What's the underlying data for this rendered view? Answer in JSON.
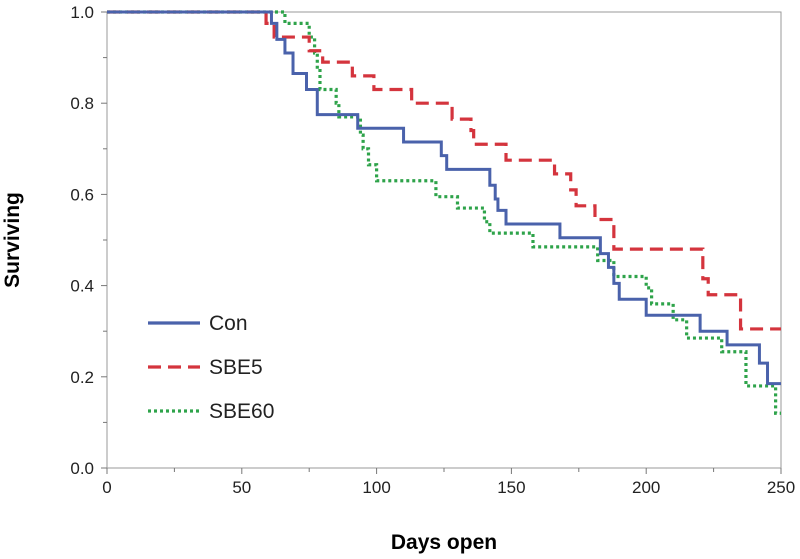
{
  "chart_data": {
    "type": "line",
    "step": true,
    "title": "",
    "xlabel": "Days open",
    "ylabel": "Surviving",
    "xlim": [
      0,
      250
    ],
    "ylim": [
      0,
      1
    ],
    "xticks": [
      0,
      50,
      100,
      150,
      200,
      250
    ],
    "xtick_labels": [
      "0",
      "50",
      "100",
      "150",
      "200",
      "250"
    ],
    "yticks": [
      0,
      0.2,
      0.4,
      0.6,
      0.8,
      1.0
    ],
    "ytick_labels": [
      "0.0",
      "0.2",
      "0.4",
      "0.6",
      "0.8",
      "1.0"
    ],
    "grid": false,
    "legend": "lower-left",
    "series": [
      {
        "name": "Con",
        "color": "#4a62ab",
        "dash": "solid",
        "points": [
          [
            0,
            1.0
          ],
          [
            61,
            1.0
          ],
          [
            61,
            0.975
          ],
          [
            63,
            0.975
          ],
          [
            63,
            0.94
          ],
          [
            66,
            0.94
          ],
          [
            66,
            0.91
          ],
          [
            69,
            0.91
          ],
          [
            69,
            0.865
          ],
          [
            74,
            0.865
          ],
          [
            74,
            0.83
          ],
          [
            78,
            0.83
          ],
          [
            78,
            0.775
          ],
          [
            93,
            0.775
          ],
          [
            93,
            0.745
          ],
          [
            110,
            0.745
          ],
          [
            110,
            0.715
          ],
          [
            124,
            0.715
          ],
          [
            124,
            0.685
          ],
          [
            126,
            0.685
          ],
          [
            126,
            0.655
          ],
          [
            142,
            0.655
          ],
          [
            142,
            0.62
          ],
          [
            144,
            0.62
          ],
          [
            144,
            0.59
          ],
          [
            145,
            0.59
          ],
          [
            145,
            0.565
          ],
          [
            148,
            0.565
          ],
          [
            148,
            0.535
          ],
          [
            168,
            0.535
          ],
          [
            168,
            0.505
          ],
          [
            183,
            0.505
          ],
          [
            183,
            0.47
          ],
          [
            186,
            0.47
          ],
          [
            186,
            0.44
          ],
          [
            188,
            0.44
          ],
          [
            188,
            0.405
          ],
          [
            190,
            0.405
          ],
          [
            190,
            0.37
          ],
          [
            200,
            0.37
          ],
          [
            200,
            0.335
          ],
          [
            220,
            0.335
          ],
          [
            220,
            0.3
          ],
          [
            230,
            0.3
          ],
          [
            230,
            0.27
          ],
          [
            242,
            0.27
          ],
          [
            242,
            0.23
          ],
          [
            245,
            0.23
          ],
          [
            245,
            0.185
          ],
          [
            250,
            0.185
          ]
        ]
      },
      {
        "name": "SBE5",
        "color": "#d4343d",
        "dash": "dashed",
        "points": [
          [
            0,
            1.0
          ],
          [
            59,
            1.0
          ],
          [
            59,
            0.975
          ],
          [
            62,
            0.975
          ],
          [
            62,
            0.945
          ],
          [
            75,
            0.945
          ],
          [
            75,
            0.915
          ],
          [
            80,
            0.915
          ],
          [
            80,
            0.89
          ],
          [
            91,
            0.89
          ],
          [
            91,
            0.86
          ],
          [
            99,
            0.86
          ],
          [
            99,
            0.83
          ],
          [
            113,
            0.83
          ],
          [
            113,
            0.8
          ],
          [
            128,
            0.8
          ],
          [
            128,
            0.765
          ],
          [
            135,
            0.765
          ],
          [
            135,
            0.74
          ],
          [
            136,
            0.74
          ],
          [
            136,
            0.71
          ],
          [
            148,
            0.71
          ],
          [
            148,
            0.675
          ],
          [
            166,
            0.675
          ],
          [
            166,
            0.645
          ],
          [
            172,
            0.645
          ],
          [
            172,
            0.61
          ],
          [
            174,
            0.61
          ],
          [
            174,
            0.575
          ],
          [
            181,
            0.575
          ],
          [
            181,
            0.545
          ],
          [
            188,
            0.545
          ],
          [
            188,
            0.48
          ],
          [
            221,
            0.48
          ],
          [
            221,
            0.415
          ],
          [
            223,
            0.415
          ],
          [
            223,
            0.38
          ],
          [
            235,
            0.38
          ],
          [
            235,
            0.305
          ],
          [
            250,
            0.305
          ]
        ]
      },
      {
        "name": "SBE60",
        "color": "#2ea34a",
        "dash": "dotted",
        "points": [
          [
            0,
            1.0
          ],
          [
            66,
            1.0
          ],
          [
            66,
            0.975
          ],
          [
            75,
            0.975
          ],
          [
            75,
            0.945
          ],
          [
            77,
            0.945
          ],
          [
            77,
            0.91
          ],
          [
            78,
            0.91
          ],
          [
            78,
            0.875
          ],
          [
            79,
            0.875
          ],
          [
            79,
            0.83
          ],
          [
            85,
            0.83
          ],
          [
            85,
            0.8
          ],
          [
            86,
            0.8
          ],
          [
            86,
            0.77
          ],
          [
            94,
            0.77
          ],
          [
            94,
            0.73
          ],
          [
            95,
            0.73
          ],
          [
            95,
            0.7
          ],
          [
            97,
            0.7
          ],
          [
            97,
            0.665
          ],
          [
            100,
            0.665
          ],
          [
            100,
            0.63
          ],
          [
            122,
            0.63
          ],
          [
            122,
            0.595
          ],
          [
            130,
            0.595
          ],
          [
            130,
            0.57
          ],
          [
            140,
            0.57
          ],
          [
            140,
            0.54
          ],
          [
            142,
            0.54
          ],
          [
            142,
            0.515
          ],
          [
            158,
            0.515
          ],
          [
            158,
            0.485
          ],
          [
            182,
            0.485
          ],
          [
            182,
            0.455
          ],
          [
            188,
            0.455
          ],
          [
            188,
            0.42
          ],
          [
            200,
            0.42
          ],
          [
            200,
            0.395
          ],
          [
            202,
            0.395
          ],
          [
            202,
            0.36
          ],
          [
            210,
            0.36
          ],
          [
            210,
            0.325
          ],
          [
            215,
            0.325
          ],
          [
            215,
            0.285
          ],
          [
            228,
            0.285
          ],
          [
            228,
            0.255
          ],
          [
            237,
            0.255
          ],
          [
            237,
            0.18
          ],
          [
            248,
            0.18
          ],
          [
            248,
            0.12
          ],
          [
            250,
            0.12
          ]
        ]
      }
    ]
  }
}
